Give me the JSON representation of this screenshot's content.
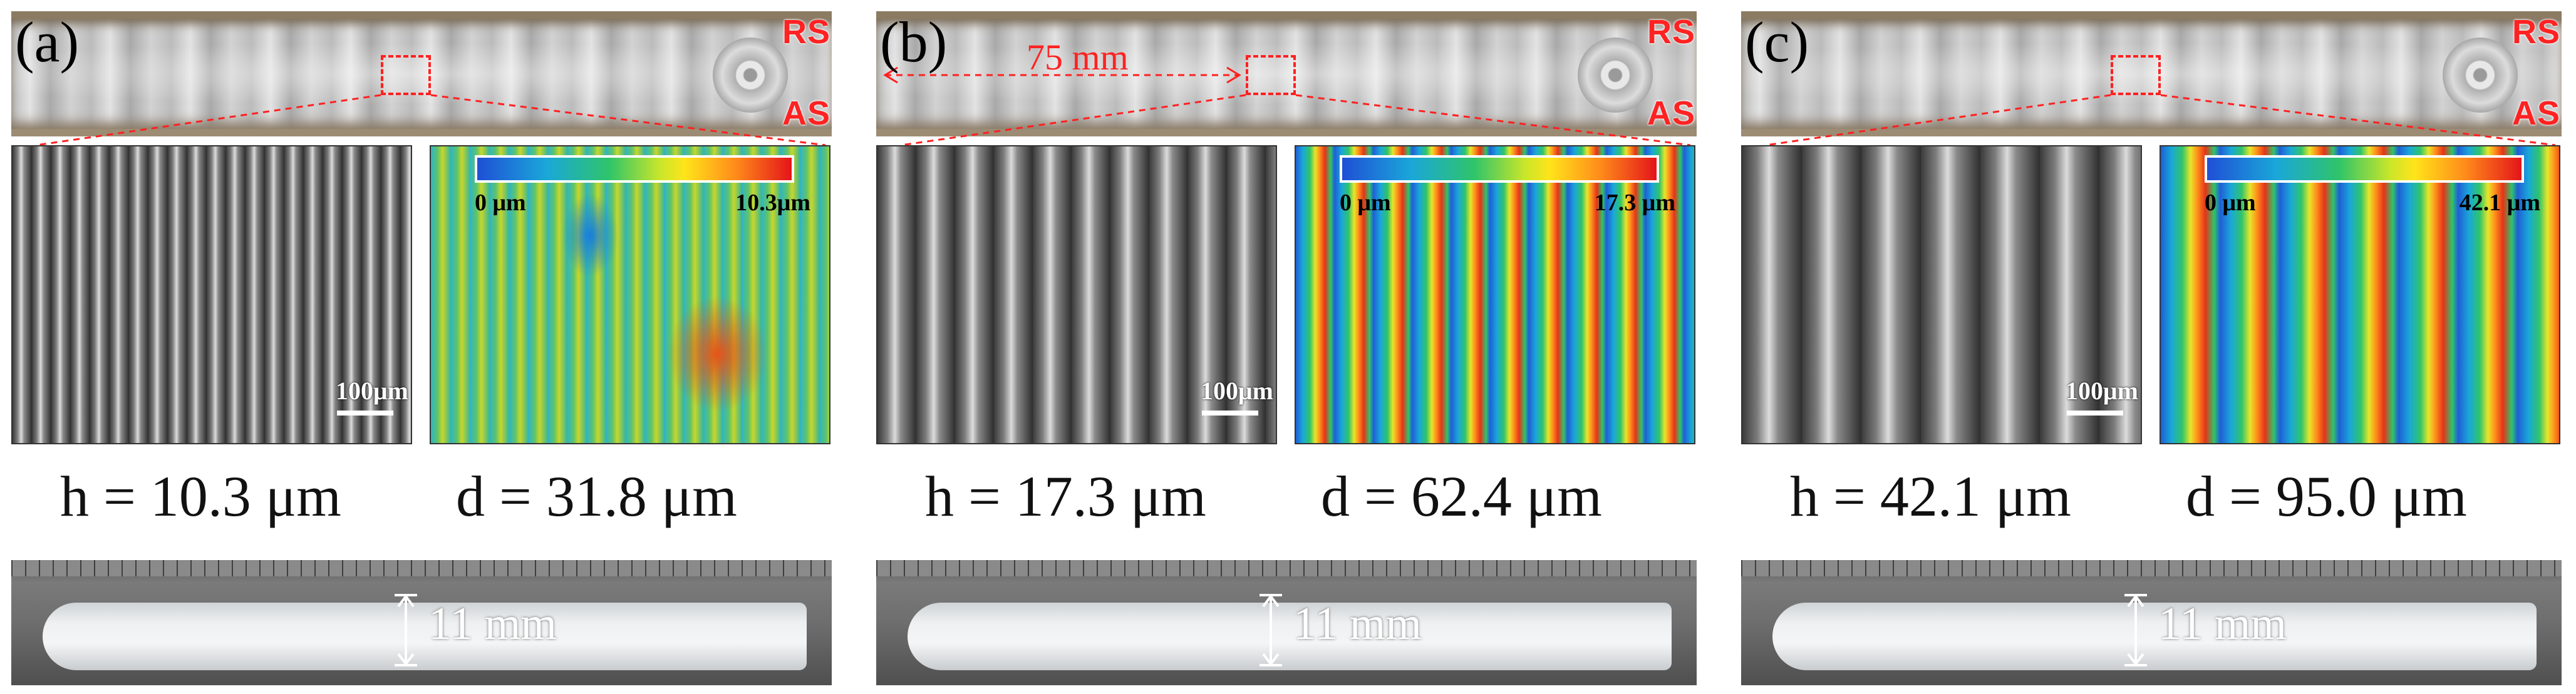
{
  "panels": [
    {
      "label": "(a)",
      "weld": {
        "rs": "RS",
        "as": "AS",
        "dimension": ""
      },
      "colorbar": {
        "min": "0 μm",
        "max": "10.3μm"
      },
      "scalebar": "100μm",
      "measurements": {
        "h": "h = 10.3 μm",
        "d": "d = 31.8 μm"
      },
      "specimen_width": "11 mm",
      "stripe_pitch_fraction": 0.048
    },
    {
      "label": "(b)",
      "weld": {
        "rs": "RS",
        "as": "AS",
        "dimension": "75 mm"
      },
      "colorbar": {
        "min": "0 μm",
        "max": "17.3 μm"
      },
      "scalebar": "100μm",
      "measurements": {
        "h": "h = 17.3 μm",
        "d": "d = 62.4 μm"
      },
      "specimen_width": "11 mm",
      "stripe_pitch_fraction": 0.098
    },
    {
      "label": "(c)",
      "weld": {
        "rs": "RS",
        "as": "AS",
        "dimension": ""
      },
      "colorbar": {
        "min": "0 μm",
        "max": "42.1 μm"
      },
      "scalebar": "100μm",
      "measurements": {
        "h": "h = 42.1 μm",
        "d": "d = 95.0 μm"
      },
      "specimen_width": "11 mm",
      "stripe_pitch_fraction": 0.149
    }
  ],
  "colors": {
    "annotation": "#ff2222",
    "colorbar_low": "#1f4fd6",
    "colorbar_high": "#e4141a"
  }
}
